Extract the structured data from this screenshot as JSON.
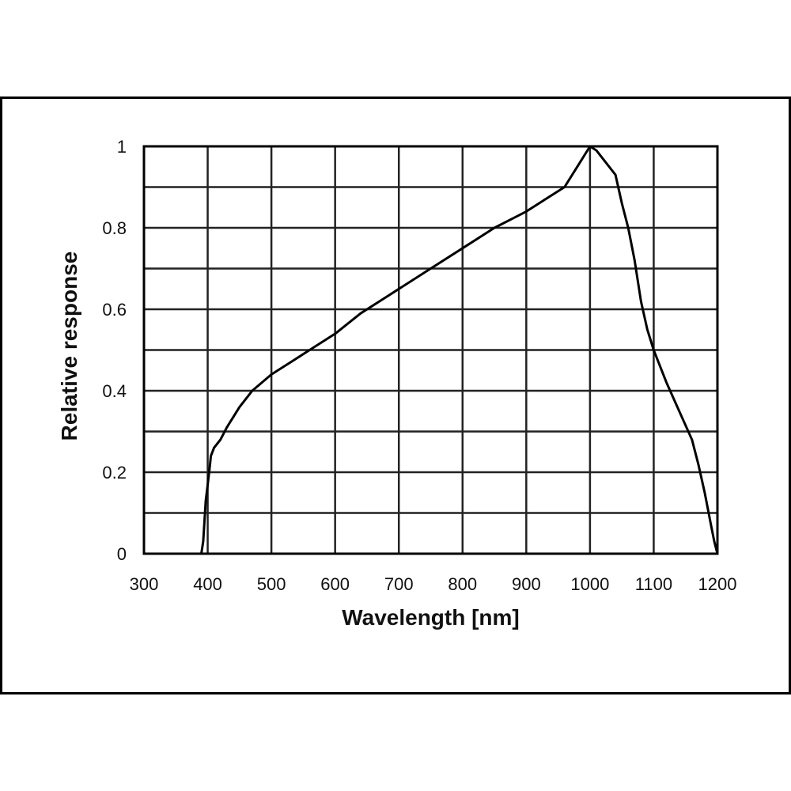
{
  "chart_data": {
    "type": "line",
    "title": "",
    "xlabel": "Wavelength [nm]",
    "ylabel": "Relative response",
    "xlim": [
      300,
      1200
    ],
    "ylim": [
      0,
      1
    ],
    "grid": true,
    "x_major_ticks": [
      300,
      400,
      500,
      600,
      700,
      800,
      900,
      1000,
      1100,
      1200
    ],
    "x_tick_labels": [
      "300",
      "400",
      "500",
      "600",
      "700",
      "800",
      "900",
      "1000",
      "1100",
      "1200"
    ],
    "y_major_ticks": [
      0,
      0.2,
      0.4,
      0.6,
      0.8,
      1
    ],
    "y_tick_labels": [
      "0",
      "0.2",
      "0.4",
      "0.6",
      "0.8",
      "1"
    ],
    "y_minor_gridlines": [
      0.1,
      0.3,
      0.5,
      0.7,
      0.9
    ],
    "series": [
      {
        "color": "#000000",
        "x": [
          390,
          393,
          395,
          397,
          400,
          403,
          405,
          410,
          420,
          430,
          450,
          470,
          500,
          530,
          560,
          600,
          640,
          680,
          700,
          750,
          800,
          850,
          900,
          930,
          960,
          980,
          1000,
          1010,
          1020,
          1040,
          1050,
          1060,
          1070,
          1080,
          1090,
          1100,
          1120,
          1140,
          1160,
          1170,
          1180,
          1190,
          1195,
          1200
        ],
        "y": [
          0,
          0.03,
          0.08,
          0.13,
          0.17,
          0.21,
          0.24,
          0.26,
          0.28,
          0.31,
          0.36,
          0.4,
          0.44,
          0.47,
          0.5,
          0.54,
          0.59,
          0.63,
          0.65,
          0.7,
          0.75,
          0.8,
          0.84,
          0.87,
          0.9,
          0.95,
          1.0,
          0.99,
          0.97,
          0.93,
          0.86,
          0.8,
          0.72,
          0.62,
          0.55,
          0.5,
          0.42,
          0.35,
          0.28,
          0.22,
          0.15,
          0.07,
          0.03,
          0
        ]
      }
    ]
  }
}
